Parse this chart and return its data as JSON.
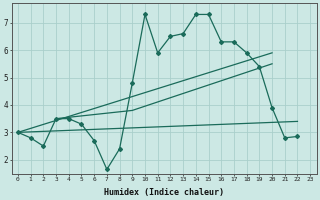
{
  "xlabel": "Humidex (Indice chaleur)",
  "background_color": "#cce8e4",
  "grid_color": "#aacfcb",
  "line_color": "#1a6b5a",
  "xmin": -0.5,
  "xmax": 23.5,
  "ymin": 1.5,
  "ymax": 7.7,
  "yticks": [
    2,
    3,
    4,
    5,
    6,
    7
  ],
  "xticks": [
    0,
    1,
    2,
    3,
    4,
    5,
    6,
    7,
    8,
    9,
    10,
    11,
    12,
    13,
    14,
    15,
    16,
    17,
    18,
    19,
    20,
    21,
    22,
    23
  ],
  "line1_x": [
    0,
    1,
    2,
    3,
    4,
    5,
    6,
    7,
    8,
    9,
    10,
    11,
    12,
    13,
    14,
    15,
    16,
    17,
    18,
    19,
    20,
    21,
    22
  ],
  "line1_y": [
    3.0,
    2.8,
    2.5,
    3.5,
    3.5,
    3.3,
    2.7,
    1.65,
    2.4,
    4.8,
    7.3,
    5.9,
    6.5,
    6.6,
    7.3,
    7.3,
    6.3,
    6.3,
    5.9,
    5.4,
    3.9,
    2.8,
    2.85
  ],
  "line2_x": [
    0,
    22
  ],
  "line2_y": [
    3.0,
    3.4
  ],
  "line3_x": [
    0,
    20
  ],
  "line3_y": [
    3.0,
    5.9
  ],
  "line4_x": [
    3,
    9,
    20
  ],
  "line4_y": [
    3.5,
    3.8,
    5.5
  ]
}
